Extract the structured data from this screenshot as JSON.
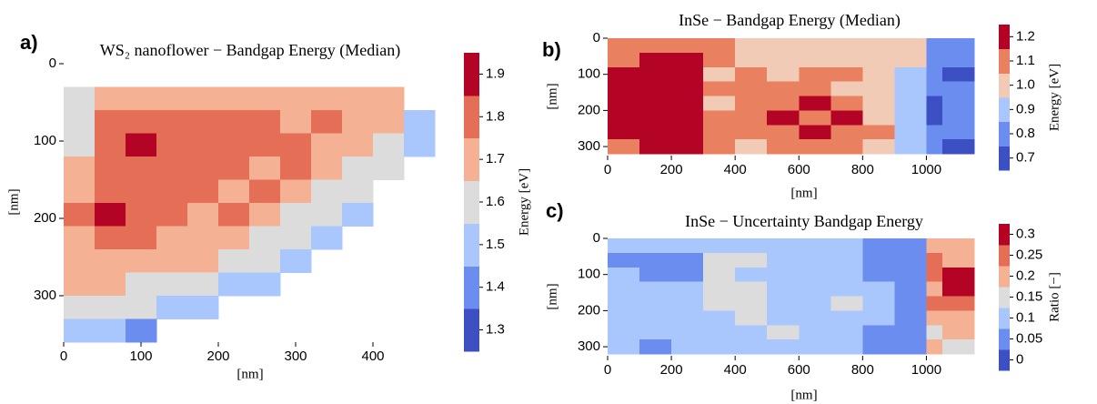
{
  "chart_data": [
    {
      "type": "heatmap",
      "panel_label": "a)",
      "title": "WS₂ nanoflower − Bandgap Energy (Median)",
      "xlabel": "[nm]",
      "ylabel": "[nm]",
      "x": [
        20,
        60,
        100,
        140,
        180,
        220,
        260,
        300,
        340,
        380,
        420,
        460
      ],
      "y": [
        45,
        75,
        105,
        135,
        165,
        195,
        225,
        255,
        285,
        315,
        345
      ],
      "z": [
        [
          1.6,
          1.7,
          1.7,
          1.7,
          1.7,
          1.7,
          1.7,
          1.7,
          1.7,
          1.7,
          1.7,
          null
        ],
        [
          1.6,
          1.8,
          1.8,
          1.8,
          1.8,
          1.8,
          1.8,
          1.7,
          1.8,
          1.7,
          1.7,
          1.5
        ],
        [
          1.6,
          1.8,
          1.9,
          1.8,
          1.8,
          1.8,
          1.8,
          1.8,
          1.7,
          1.7,
          1.6,
          1.5
        ],
        [
          1.7,
          1.8,
          1.8,
          1.8,
          1.8,
          1.8,
          1.7,
          1.8,
          1.7,
          1.6,
          1.6,
          null
        ],
        [
          1.7,
          1.8,
          1.8,
          1.8,
          1.8,
          1.7,
          1.8,
          1.7,
          1.6,
          1.6,
          null,
          null
        ],
        [
          1.8,
          1.9,
          1.8,
          1.8,
          1.7,
          1.8,
          1.7,
          1.6,
          1.6,
          1.5,
          null,
          null
        ],
        [
          1.7,
          1.8,
          1.8,
          1.7,
          1.7,
          1.7,
          1.6,
          1.6,
          1.5,
          null,
          null,
          null
        ],
        [
          1.7,
          1.7,
          1.7,
          1.7,
          1.7,
          1.6,
          1.6,
          1.5,
          null,
          null,
          null,
          null
        ],
        [
          1.7,
          1.7,
          1.6,
          1.6,
          1.6,
          1.5,
          1.5,
          null,
          null,
          null,
          null,
          null
        ],
        [
          1.6,
          1.6,
          1.6,
          1.5,
          1.5,
          null,
          null,
          null,
          null,
          null,
          null,
          null
        ],
        [
          1.5,
          1.5,
          1.4,
          null,
          null,
          null,
          null,
          null,
          null,
          null,
          null,
          null
        ]
      ],
      "xlim": [
        0,
        480
      ],
      "ylim": [
        360,
        0
      ],
      "xticks": [
        0,
        100,
        200,
        300,
        400
      ],
      "yticks": [
        0,
        100,
        200,
        300
      ],
      "colorbar": {
        "label": "Energy [eV]",
        "lim": [
          1.25,
          1.95
        ],
        "ticks": [
          1.3,
          1.4,
          1.5,
          1.6,
          1.7,
          1.8,
          1.9
        ],
        "colors": [
          "#3d50c3",
          "#6b8df0",
          "#aac7fd",
          "#dddcdc",
          "#f5b194",
          "#e46e56",
          "#b40426"
        ]
      }
    },
    {
      "type": "heatmap",
      "panel_label": "b)",
      "title": "InSe − Bandgap Energy (Median)",
      "xlabel": "[nm]",
      "ylabel": "[nm]",
      "x": [
        50,
        150,
        250,
        350,
        450,
        550,
        650,
        750,
        850,
        950,
        1050,
        1100
      ],
      "y": [
        20,
        60,
        100,
        140,
        180,
        220,
        260,
        300
      ],
      "z": [
        [
          1.1,
          1.1,
          1.1,
          1.1,
          1.0,
          1.0,
          1.0,
          1.0,
          1.0,
          1.0,
          0.8,
          0.8
        ],
        [
          1.1,
          1.2,
          1.2,
          1.1,
          1.0,
          1.0,
          1.0,
          1.0,
          1.0,
          1.0,
          0.8,
          0.8
        ],
        [
          1.2,
          1.2,
          1.2,
          1.0,
          1.1,
          1.0,
          1.1,
          1.1,
          1.0,
          0.9,
          0.8,
          0.7
        ],
        [
          1.2,
          1.2,
          1.2,
          1.1,
          1.1,
          1.1,
          1.1,
          1.0,
          1.0,
          0.9,
          0.8,
          0.8
        ],
        [
          1.2,
          1.2,
          1.2,
          1.0,
          1.1,
          1.1,
          1.2,
          1.1,
          1.0,
          0.9,
          0.7,
          0.8
        ],
        [
          1.2,
          1.2,
          1.2,
          1.1,
          1.1,
          1.2,
          1.1,
          1.2,
          1.0,
          0.9,
          0.7,
          0.8
        ],
        [
          1.2,
          1.2,
          1.2,
          1.1,
          1.1,
          1.1,
          1.2,
          1.1,
          1.1,
          0.9,
          0.8,
          0.8
        ],
        [
          1.1,
          1.2,
          1.2,
          1.1,
          1.0,
          1.1,
          1.1,
          1.1,
          1.0,
          0.9,
          0.8,
          0.7
        ]
      ],
      "xlim": [
        0,
        1150
      ],
      "ylim": [
        325,
        0
      ],
      "xticks": [
        0,
        200,
        400,
        600,
        800,
        1000
      ],
      "yticks": [
        0,
        100,
        200,
        300
      ],
      "colorbar": {
        "label": "Energy [eV]",
        "lim": [
          0.65,
          1.25
        ],
        "ticks": [
          0.7,
          0.8,
          0.9,
          {
            "value": 1,
            "label": "1.0"
          },
          1.1,
          1.2
        ],
        "colors": [
          "#3d50c3",
          "#6b8df0",
          "#aac7fd",
          "#f2cbb7",
          "#e9805f",
          "#b40426"
        ]
      }
    },
    {
      "type": "heatmap",
      "panel_label": "c)",
      "title": "InSe − Uncertainty Bandgap Energy",
      "xlabel": "[nm]",
      "ylabel": "[nm]",
      "x": [
        50,
        150,
        250,
        350,
        450,
        550,
        650,
        750,
        850,
        950,
        1050,
        1100
      ],
      "y": [
        20,
        60,
        100,
        140,
        180,
        220,
        260,
        300
      ],
      "z": [
        [
          0.1,
          0.1,
          0.1,
          0.1,
          0.1,
          0.1,
          0.1,
          0.1,
          0.05,
          0.05,
          0.2,
          0.2
        ],
        [
          0.05,
          0.05,
          0.05,
          0.15,
          0.15,
          0.1,
          0.1,
          0.1,
          0.05,
          0.05,
          0.25,
          0.2
        ],
        [
          0.1,
          0.05,
          0.05,
          0.15,
          0.1,
          0.1,
          0.1,
          0.1,
          0.05,
          0.05,
          0.25,
          0.3
        ],
        [
          0.1,
          0.1,
          0.1,
          0.15,
          0.15,
          0.1,
          0.1,
          0.1,
          0.1,
          0.05,
          0.2,
          0.3
        ],
        [
          0.1,
          0.1,
          0.1,
          0.15,
          0.15,
          0.1,
          0.1,
          0.15,
          0.1,
          0.05,
          0.25,
          0.25
        ],
        [
          0.1,
          0.1,
          0.1,
          0.1,
          0.15,
          0.1,
          0.1,
          0.1,
          0.1,
          0.05,
          0.2,
          0.2
        ],
        [
          0.1,
          0.1,
          0.1,
          0.1,
          0.1,
          0.15,
          0.1,
          0.1,
          0.05,
          0.05,
          0.15,
          0.2
        ],
        [
          0.1,
          0.05,
          0.1,
          0.1,
          0.1,
          0.1,
          0.1,
          0.1,
          0.05,
          0.05,
          0.2,
          0.15
        ]
      ],
      "xlim": [
        0,
        1150
      ],
      "ylim": [
        325,
        0
      ],
      "xticks": [
        0,
        200,
        400,
        600,
        800,
        1000
      ],
      "yticks": [
        0,
        100,
        200,
        300
      ],
      "colorbar": {
        "label": "Ratio [−]",
        "lim": [
          -0.025,
          0.325
        ],
        "ticks": [
          0,
          0.05,
          0.1,
          0.15,
          0.2,
          0.25,
          0.3
        ],
        "colors": [
          "#3d50c3",
          "#6b8df0",
          "#aac7fd",
          "#dddcdc",
          "#f5b194",
          "#e46e56",
          "#b40426"
        ]
      }
    }
  ]
}
